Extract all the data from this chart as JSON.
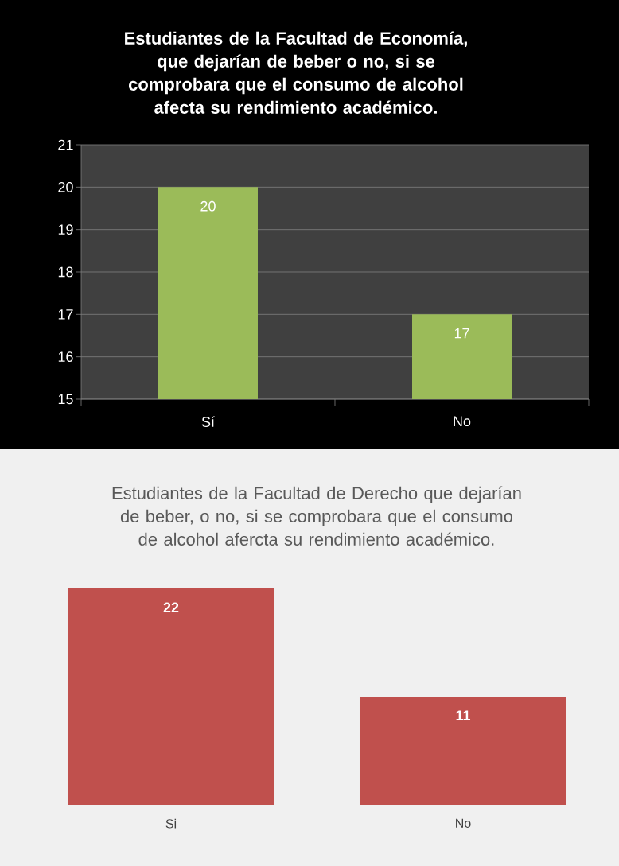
{
  "chart_data": [
    {
      "type": "bar",
      "title": "Estudiantes  de la Facultad de Economía, que dejarían de beber o no, si se comprobara que el consumo de alcohol afecta su rendimiento académico.",
      "categories": [
        "Sí",
        "No"
      ],
      "values": [
        20,
        17
      ],
      "color": "#9bbb59",
      "ylim": [
        15,
        21
      ],
      "yticks": [
        15,
        16,
        17,
        18,
        19,
        20,
        21
      ],
      "grid": "y",
      "data_labels": true
    },
    {
      "type": "bar",
      "title": "Estudiantes de la Facultad de Derecho que dejarían de beber, o no, si se comprobara que el consumo de alcohol afercta su rendimiento académico.",
      "categories": [
        "Si",
        "No"
      ],
      "values": [
        22,
        11
      ],
      "color": "#c0504d",
      "data_labels": true
    }
  ]
}
